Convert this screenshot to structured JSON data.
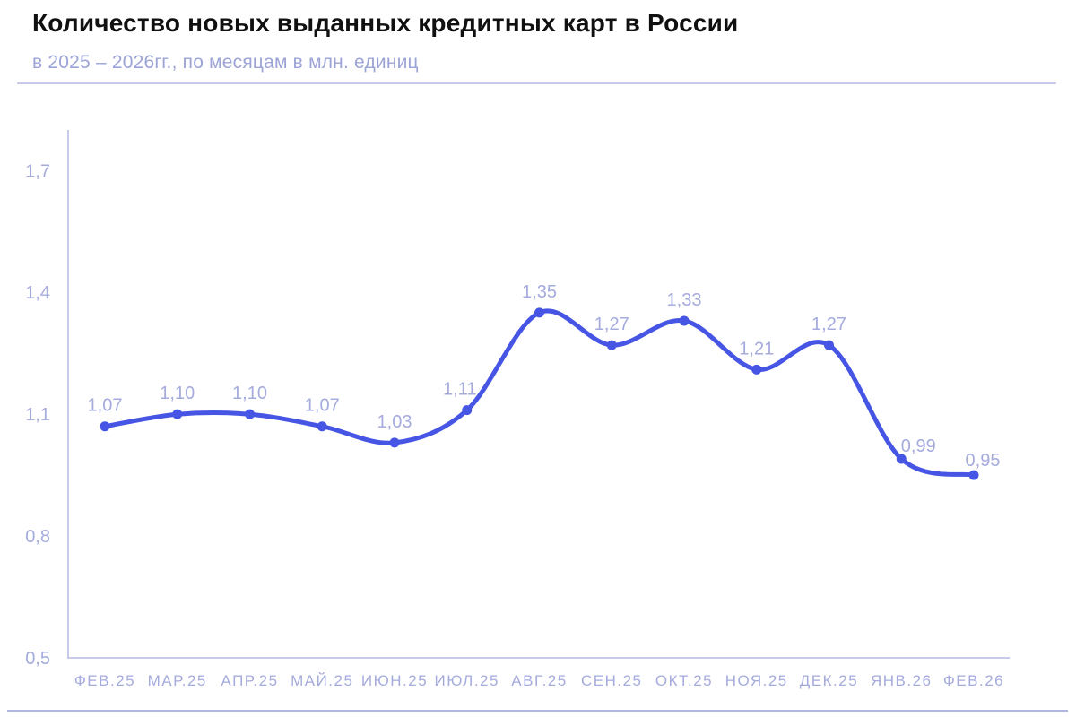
{
  "header": {
    "title": "Количество новых выданных кредитных карт в России",
    "subtitle": "в 2025 – 2026гг., по месяцам в млн. единиц"
  },
  "chart_data": {
    "type": "line",
    "title": "Количество новых выданных кредитных карт в России",
    "subtitle": "в 2025 – 2026гг., по месяцам в млн. единиц",
    "units": "млн. единиц",
    "categories": [
      "ФЕВ.25",
      "МАР.25",
      "АПР.25",
      "МАЙ.25",
      "ИЮН.25",
      "ИЮЛ.25",
      "АВГ.25",
      "СЕН.25",
      "ОКТ.25",
      "НОЯ.25",
      "ДЕК.25",
      "ЯНВ.26",
      "ФЕВ.26"
    ],
    "values": [
      1.07,
      1.1,
      1.1,
      1.07,
      1.03,
      1.11,
      1.35,
      1.27,
      1.33,
      1.21,
      1.27,
      0.99,
      0.95
    ],
    "point_labels": [
      "1,07",
      "1,10",
      "1,10",
      "1,07",
      "1,03",
      "1,11",
      "1,35",
      "1,27",
      "1,33",
      "1,21",
      "1,27",
      "0,99",
      "0,95"
    ],
    "y_tick_values": [
      0.5,
      0.8,
      1.1,
      1.4,
      1.7
    ],
    "y_tick_labels": [
      "0,5",
      "0,8",
      "1,1",
      "1,4",
      "1,7"
    ],
    "ylim": [
      0.5,
      1.8
    ],
    "xlabel": "",
    "ylabel": "",
    "grid": false,
    "legend": "none",
    "colors": {
      "line": "#4655e4",
      "point": "#4655e4",
      "tick_text": "#a5abdd",
      "point_label_text": "#a5abdd",
      "axis": "#c7cbe9"
    }
  }
}
